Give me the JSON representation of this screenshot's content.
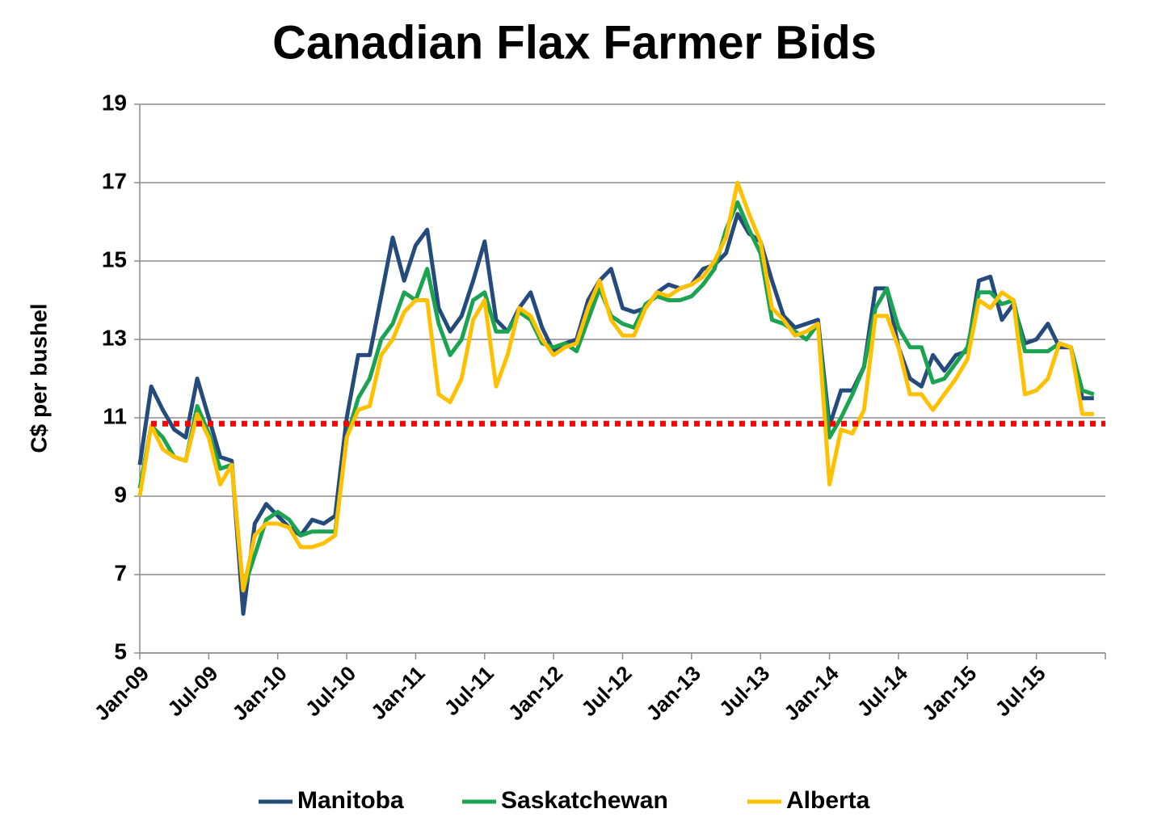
{
  "chart_data": {
    "type": "line",
    "title": "Canadian Flax Farmer Bids",
    "y_label": "C$ per bushel",
    "categories": [
      "Jan-09",
      null,
      null,
      null,
      null,
      null,
      "Jul-09",
      null,
      null,
      null,
      null,
      null,
      "Jan-10",
      null,
      null,
      null,
      null,
      null,
      "Jul-10",
      null,
      null,
      null,
      null,
      null,
      "Jan-11",
      null,
      null,
      null,
      null,
      null,
      "Jul-11",
      null,
      null,
      null,
      null,
      null,
      "Jan-12",
      null,
      null,
      null,
      null,
      null,
      "Jul-12",
      null,
      null,
      null,
      null,
      null,
      "Jan-13",
      null,
      null,
      null,
      null,
      null,
      "Jul-13",
      null,
      null,
      null,
      null,
      null,
      "Jan-14",
      null,
      null,
      null,
      null,
      null,
      "Jul-14",
      null,
      null,
      null,
      null,
      null,
      "Jan-15",
      null,
      null,
      null,
      null,
      null,
      "Jul-15",
      null,
      null,
      null,
      null,
      null,
      null
    ],
    "series": [
      {
        "name": "Manitoba",
        "color": "#254a7c",
        "values": [
          9.8,
          11.8,
          11.2,
          10.7,
          10.5,
          12.0,
          11.0,
          10.0,
          9.9,
          6.0,
          8.3,
          8.8,
          8.5,
          8.2,
          8.0,
          8.4,
          8.3,
          8.5,
          11.0,
          12.6,
          12.6,
          14.1,
          15.6,
          14.5,
          15.4,
          15.8,
          13.8,
          13.2,
          13.6,
          14.5,
          15.5,
          13.5,
          13.2,
          13.8,
          14.2,
          13.3,
          12.7,
          12.9,
          13.0,
          14.0,
          14.5,
          14.8,
          13.8,
          13.7,
          13.8,
          14.2,
          14.4,
          14.3,
          14.4,
          14.8,
          14.9,
          15.2,
          16.2,
          15.7,
          15.5,
          14.5,
          13.6,
          13.3,
          13.4,
          13.5,
          10.8,
          11.7,
          11.7,
          12.3,
          14.3,
          14.3,
          12.8,
          12.0,
          11.8,
          12.6,
          12.2,
          12.6,
          12.7,
          14.5,
          14.6,
          13.5,
          13.9,
          12.9,
          13.0,
          13.4,
          12.8,
          12.8,
          11.5,
          11.5,
          null
        ]
      },
      {
        "name": "Saskatchewan",
        "color": "#1aa350",
        "values": [
          9.2,
          10.8,
          10.5,
          10.0,
          9.9,
          11.3,
          10.6,
          9.7,
          9.8,
          6.6,
          7.5,
          8.4,
          8.6,
          8.4,
          8.0,
          8.1,
          8.1,
          8.1,
          10.5,
          11.5,
          12.0,
          13.0,
          13.4,
          14.2,
          14.0,
          14.8,
          13.4,
          12.6,
          13.0,
          14.0,
          14.2,
          13.2,
          13.2,
          13.7,
          13.5,
          12.9,
          12.8,
          12.9,
          12.7,
          13.5,
          14.3,
          13.6,
          13.4,
          13.3,
          13.9,
          14.1,
          14.0,
          14.0,
          14.1,
          14.4,
          14.8,
          15.8,
          16.5,
          15.8,
          15.2,
          13.5,
          13.4,
          13.2,
          13.0,
          13.4,
          10.5,
          11.0,
          11.6,
          12.3,
          13.8,
          14.3,
          13.3,
          12.8,
          12.8,
          11.9,
          12.0,
          12.4,
          12.8,
          14.2,
          14.2,
          13.9,
          14.0,
          12.7,
          12.7,
          12.7,
          12.9,
          12.8,
          11.7,
          11.6,
          null
        ]
      },
      {
        "name": "Alberta",
        "color": "#ffc000",
        "values": [
          9.0,
          10.8,
          10.2,
          10.0,
          9.9,
          11.1,
          10.5,
          9.3,
          9.8,
          6.6,
          8.0,
          8.3,
          8.3,
          8.2,
          7.7,
          7.7,
          7.8,
          8.0,
          10.5,
          11.2,
          11.3,
          12.6,
          13.0,
          13.7,
          14.0,
          14.0,
          11.6,
          11.4,
          12.0,
          13.5,
          14.0,
          11.8,
          12.6,
          13.8,
          13.6,
          13.0,
          12.6,
          12.8,
          12.9,
          13.8,
          14.5,
          13.5,
          13.1,
          13.1,
          13.8,
          14.2,
          14.1,
          14.3,
          14.4,
          14.6,
          15.0,
          15.6,
          17.0,
          16.2,
          15.5,
          13.8,
          13.5,
          13.1,
          13.2,
          13.4,
          9.3,
          10.7,
          10.6,
          11.2,
          13.6,
          13.6,
          12.8,
          11.6,
          11.6,
          11.2,
          11.6,
          12.0,
          12.5,
          14.0,
          13.8,
          14.2,
          14.0,
          11.6,
          11.7,
          12.0,
          12.9,
          12.8,
          11.1,
          11.1,
          null
        ]
      }
    ],
    "reference_line": {
      "value": 10.85,
      "color": "#ff0000"
    },
    "ylim": [
      5,
      19
    ],
    "yticks": [
      5,
      7,
      9,
      11,
      13,
      15,
      17,
      19
    ],
    "grid": true,
    "legend": "bottom"
  }
}
